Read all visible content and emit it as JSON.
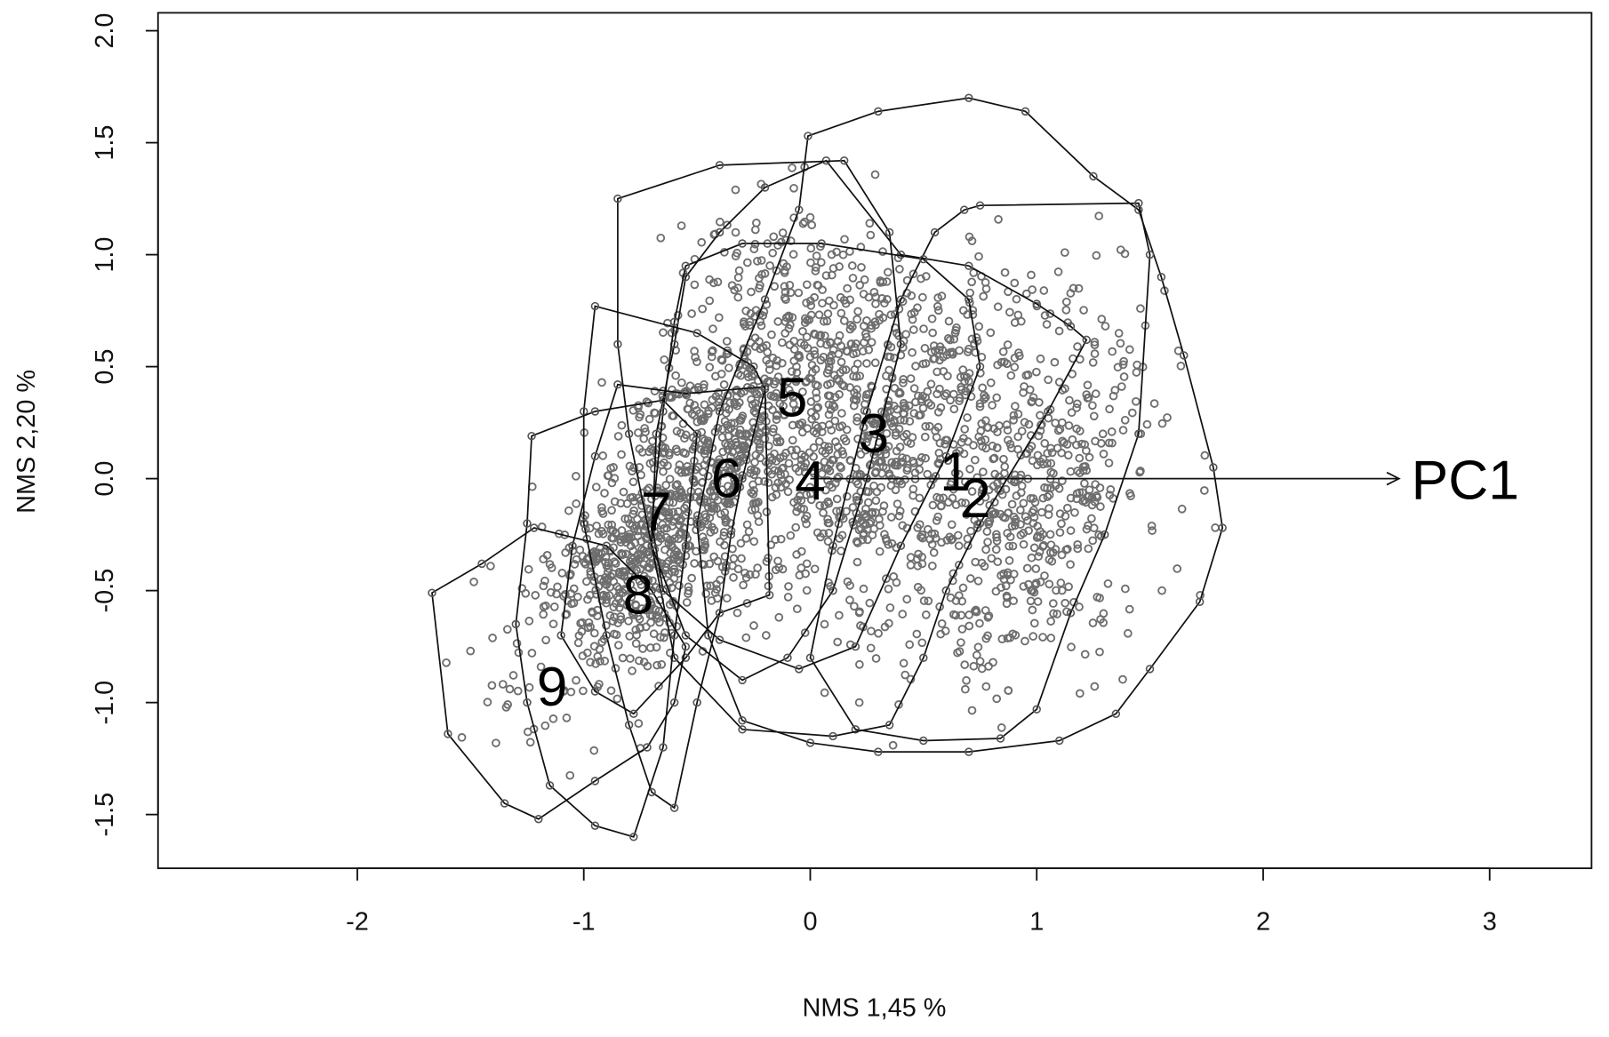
{
  "chart_data": {
    "type": "scatter",
    "xlabel": "NMS 1,45 %",
    "ylabel": "NMS 2,20 %",
    "xlim": [
      -2.88,
      3.45
    ],
    "ylim": [
      -1.74,
      2.08
    ],
    "x_ticks": [
      "-2",
      "-1",
      "0",
      "1",
      "2",
      "3"
    ],
    "y_ticks": [
      "-1.5",
      "-1.0",
      "-0.5",
      "0.0",
      "0.5",
      "1.0",
      "1.5",
      "2.0"
    ],
    "grid": false,
    "legend": "none",
    "point_color": "#6e6e6e",
    "hull_color": "#111111",
    "arrow": {
      "label": "PC1",
      "from": [
        0,
        0
      ],
      "to": [
        2.6,
        0
      ]
    },
    "group_labels": [
      {
        "name": "1",
        "x": 0.64,
        "y": 0.03
      },
      {
        "name": "2",
        "x": 0.73,
        "y": -0.09
      },
      {
        "name": "3",
        "x": 0.28,
        "y": 0.2
      },
      {
        "name": "4",
        "x": 0.0,
        "y": -0.01
      },
      {
        "name": "5",
        "x": -0.08,
        "y": 0.36
      },
      {
        "name": "6",
        "x": -0.37,
        "y": 0.0
      },
      {
        "name": "7",
        "x": -0.68,
        "y": -0.15
      },
      {
        "name": "8",
        "x": -0.76,
        "y": -0.52
      },
      {
        "name": "9",
        "x": -1.14,
        "y": -0.93
      }
    ],
    "hulls": [
      {
        "name": "1",
        "points": [
          [
            -0.01,
            1.53
          ],
          [
            0.3,
            1.64
          ],
          [
            0.7,
            1.7
          ],
          [
            0.95,
            1.64
          ],
          [
            1.25,
            1.35
          ],
          [
            1.45,
            1.2
          ],
          [
            1.55,
            0.9
          ],
          [
            1.65,
            0.55
          ],
          [
            1.78,
            0.05
          ],
          [
            1.82,
            -0.22
          ],
          [
            1.72,
            -0.55
          ],
          [
            1.5,
            -0.85
          ],
          [
            1.35,
            -1.05
          ],
          [
            1.1,
            -1.17
          ],
          [
            0.7,
            -1.22
          ],
          [
            0.3,
            -1.22
          ],
          [
            0.0,
            -1.18
          ],
          [
            -0.3,
            -1.08
          ],
          [
            -0.45,
            -0.7
          ],
          [
            -0.5,
            -0.2
          ],
          [
            -0.4,
            0.3
          ],
          [
            -0.2,
            0.8
          ],
          [
            -0.05,
            1.2
          ]
        ]
      },
      {
        "name": "2",
        "points": [
          [
            0.68,
            1.2
          ],
          [
            0.75,
            1.22
          ],
          [
            1.45,
            1.23
          ],
          [
            1.5,
            1.0
          ],
          [
            1.45,
            0.2
          ],
          [
            1.3,
            -0.25
          ],
          [
            1.15,
            -0.6
          ],
          [
            1.0,
            -1.03
          ],
          [
            0.84,
            -1.16
          ],
          [
            0.5,
            -1.17
          ],
          [
            0.2,
            -1.12
          ],
          [
            0.0,
            -0.8
          ],
          [
            0.1,
            -0.3
          ],
          [
            0.25,
            0.3
          ],
          [
            0.4,
            0.8
          ],
          [
            0.55,
            1.1
          ]
        ]
      },
      {
        "name": "3",
        "points": [
          [
            0.07,
            1.42
          ],
          [
            0.4,
            1.0
          ],
          [
            0.7,
            0.95
          ],
          [
            1.0,
            0.78
          ],
          [
            1.15,
            0.68
          ],
          [
            1.22,
            0.62
          ],
          [
            1.05,
            0.3
          ],
          [
            0.75,
            -0.2
          ],
          [
            0.6,
            -0.5
          ],
          [
            0.5,
            -0.8
          ],
          [
            0.35,
            -1.1
          ],
          [
            0.1,
            -1.15
          ],
          [
            -0.3,
            -1.12
          ],
          [
            -0.6,
            -0.8
          ],
          [
            -0.7,
            -0.3
          ],
          [
            -0.68,
            0.2
          ],
          [
            -0.6,
            0.6
          ],
          [
            -0.55,
            0.9
          ],
          [
            -0.4,
            1.1
          ],
          [
            -0.2,
            1.3
          ]
        ]
      },
      {
        "name": "4",
        "points": [
          [
            -0.55,
            0.95
          ],
          [
            -0.3,
            1.05
          ],
          [
            0.05,
            1.05
          ],
          [
            0.5,
            0.98
          ],
          [
            0.7,
            0.8
          ],
          [
            0.75,
            0.5
          ],
          [
            0.6,
            0.1
          ],
          [
            0.4,
            -0.3
          ],
          [
            0.2,
            -0.75
          ],
          [
            -0.05,
            -0.85
          ],
          [
            -0.4,
            -0.72
          ],
          [
            -0.65,
            -0.5
          ],
          [
            -0.7,
            -0.2
          ],
          [
            -0.65,
            0.3
          ],
          [
            -0.6,
            0.7
          ]
        ]
      },
      {
        "name": "5",
        "points": [
          [
            -0.85,
            1.25
          ],
          [
            -0.4,
            1.4
          ],
          [
            0.15,
            1.42
          ],
          [
            0.35,
            1.1
          ],
          [
            0.4,
            0.6
          ],
          [
            0.25,
            0.0
          ],
          [
            0.1,
            -0.5
          ],
          [
            -0.1,
            -0.8
          ],
          [
            -0.3,
            -0.9
          ],
          [
            -0.55,
            -0.7
          ],
          [
            -0.7,
            -0.3
          ],
          [
            -0.8,
            0.2
          ],
          [
            -0.85,
            0.6
          ]
        ]
      },
      {
        "name": "6",
        "points": [
          [
            -0.95,
            0.77
          ],
          [
            -0.5,
            0.65
          ],
          [
            -0.25,
            0.5
          ],
          [
            -0.2,
            0.4
          ],
          [
            -0.3,
            0.0
          ],
          [
            -0.35,
            -0.25
          ],
          [
            -0.4,
            -0.6
          ],
          [
            -0.5,
            -1.0
          ],
          [
            -0.6,
            -1.47
          ],
          [
            -0.7,
            -1.4
          ],
          [
            -0.8,
            -1.1
          ],
          [
            -0.9,
            -0.7
          ],
          [
            -1.0,
            -0.2
          ],
          [
            -1.0,
            0.3
          ]
        ]
      },
      {
        "name": "7",
        "points": [
          [
            -0.85,
            0.42
          ],
          [
            -0.55,
            0.38
          ],
          [
            -0.2,
            0.41
          ],
          [
            -0.18,
            -0.52
          ],
          [
            -0.4,
            -0.6
          ],
          [
            -0.55,
            -0.8
          ],
          [
            -0.78,
            -1.05
          ],
          [
            -0.95,
            -0.95
          ],
          [
            -1.1,
            -0.7
          ],
          [
            -1.05,
            -0.3
          ],
          [
            -0.95,
            0.1
          ]
        ]
      },
      {
        "name": "8",
        "points": [
          [
            -1.23,
            0.19
          ],
          [
            -0.95,
            0.3
          ],
          [
            -0.65,
            0.35
          ],
          [
            -0.5,
            0.2
          ],
          [
            -0.55,
            -0.3
          ],
          [
            -0.6,
            -0.7
          ],
          [
            -0.65,
            -1.2
          ],
          [
            -0.78,
            -1.6
          ],
          [
            -0.95,
            -1.55
          ],
          [
            -1.15,
            -1.37
          ],
          [
            -1.25,
            -1.0
          ],
          [
            -1.3,
            -0.65
          ],
          [
            -1.25,
            -0.2
          ]
        ]
      },
      {
        "name": "9",
        "points": [
          [
            -1.22,
            -0.22
          ],
          [
            -0.9,
            -0.3
          ],
          [
            -0.7,
            -0.5
          ],
          [
            -0.55,
            -0.75
          ],
          [
            -0.6,
            -1.0
          ],
          [
            -0.72,
            -1.2
          ],
          [
            -0.95,
            -1.35
          ],
          [
            -1.2,
            -1.52
          ],
          [
            -1.35,
            -1.45
          ],
          [
            -1.6,
            -1.14
          ],
          [
            -1.67,
            -0.51
          ],
          [
            -1.45,
            -0.38
          ]
        ]
      }
    ]
  }
}
